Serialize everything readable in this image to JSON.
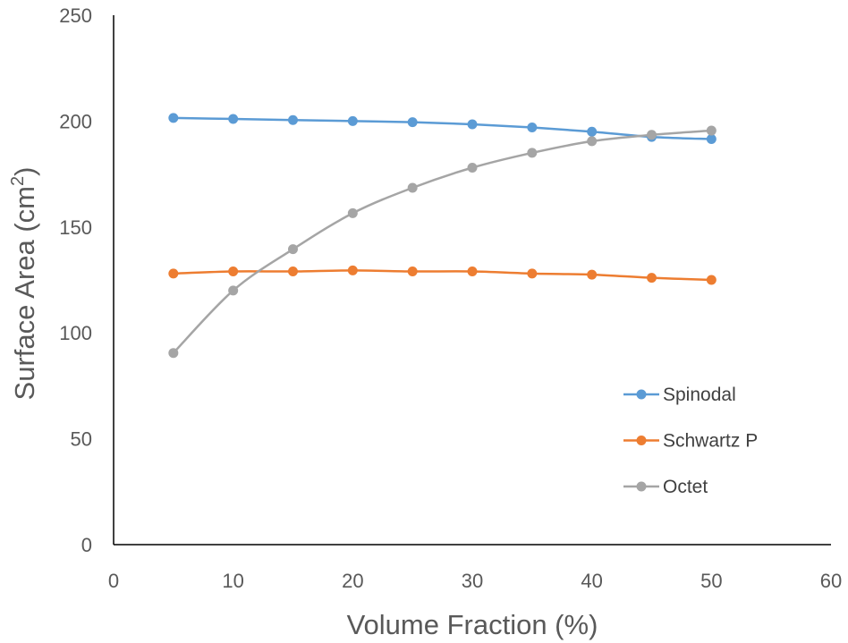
{
  "chart_data": {
    "type": "line",
    "title": "",
    "xlabel": "Volume Fraction (%)",
    "ylabel_main": "Surface Area (cm",
    "ylabel_sup": "2",
    "ylabel_close": ")",
    "xlim": [
      0,
      60
    ],
    "ylim": [
      0,
      250
    ],
    "x_ticks": [
      0,
      10,
      20,
      30,
      40,
      50,
      60
    ],
    "y_ticks": [
      0,
      50,
      100,
      150,
      200,
      250
    ],
    "grid": false,
    "legend": "right-middle",
    "x": [
      5,
      10,
      15,
      20,
      25,
      30,
      35,
      40,
      45,
      50
    ],
    "series": [
      {
        "name": "Spinodal",
        "color": "#5B9BD5",
        "values": [
          201.5,
          201,
          200.5,
          200,
          199.5,
          198.5,
          197,
          195,
          192.5,
          191.5
        ]
      },
      {
        "name": "Schwartz P",
        "color": "#ED7D31",
        "values": [
          128,
          129,
          129,
          129.5,
          129,
          129,
          128,
          127.5,
          126,
          125
        ]
      },
      {
        "name": "Octet",
        "color": "#A5A5A5",
        "values": [
          90.5,
          120,
          139.5,
          156.5,
          168.5,
          178,
          185,
          190.5,
          193.5,
          195.5
        ]
      }
    ]
  }
}
